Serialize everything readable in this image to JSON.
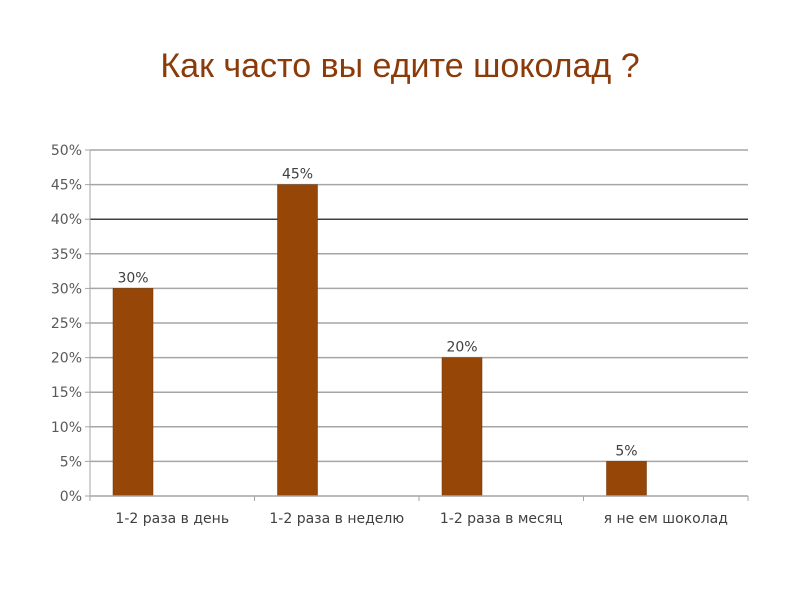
{
  "colors": {
    "title": "#8B3A0A",
    "bar": "#964607",
    "bar_stroke": "#6E3304",
    "grid": "#A6A6A6",
    "grid_major": "#404040",
    "axis": "#A6A6A6"
  },
  "chart_data": {
    "type": "bar",
    "title": "Как часто вы едите шоколад ?",
    "xlabel": "",
    "ylabel": "",
    "categories": [
      "1-2 раза в день",
      "1-2 раза в неделю",
      "1-2 раза в месяц",
      "я не ем шоколад"
    ],
    "values": [
      30,
      45,
      20,
      5
    ],
    "data_labels": [
      "30%",
      "45%",
      "20%",
      "5%"
    ],
    "ylim": [
      0,
      50
    ],
    "y_ticks": [
      0,
      5,
      10,
      15,
      20,
      25,
      30,
      35,
      40,
      45,
      50
    ],
    "y_tick_labels": [
      "0%",
      "5%",
      "10%",
      "15%",
      "20%",
      "25%",
      "30%",
      "35%",
      "40%",
      "45%",
      "50%"
    ],
    "grid": true,
    "emphasized_gridline": 40,
    "legend": "none"
  }
}
